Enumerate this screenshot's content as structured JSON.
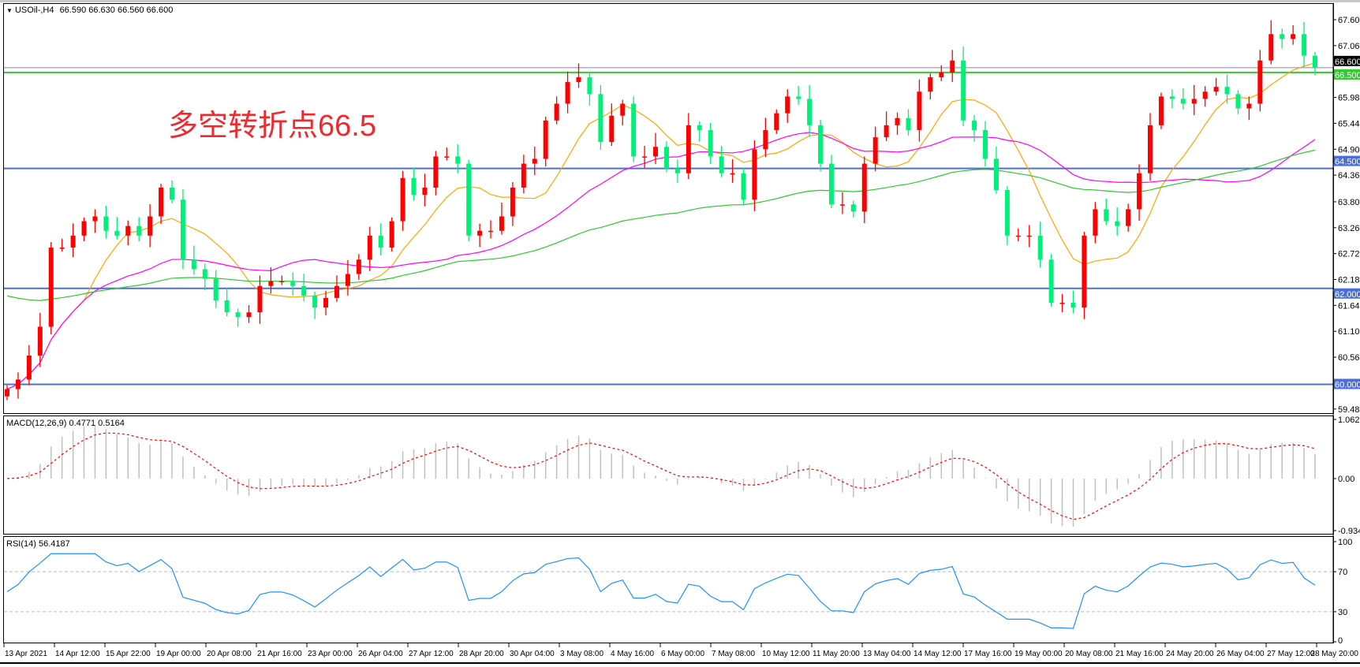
{
  "header": {
    "symbol": "USOil-,H4",
    "ohlc": "66.590 66.630 66.560 66.600",
    "menu_icon": "triangle-down-icon"
  },
  "annotation": "多空转折点66.5",
  "macd": {
    "label": "MACD(12,26,9) 0.4771 0.5164",
    "axis": [
      "1.0629",
      "0.00",
      "-0.9347"
    ]
  },
  "rsi": {
    "label": "RSI(14) 56.4187",
    "axis": [
      "100",
      "70",
      "30",
      "0"
    ]
  },
  "colors": {
    "bull": "#ff0000",
    "bear": "#00f07a",
    "level_blue": "#4a6fdc",
    "level_green": "#2ecc2e",
    "ma_fast": "#ffa500",
    "ma_mid": "#ff00ff",
    "ma_slow": "#2fc72f",
    "rsi": "#1e90ff",
    "signal": "#ff0000",
    "hist": "#c0c0c0"
  },
  "chart_data": {
    "type": "candlestick",
    "x_range": [
      "13 Apr 2021",
      "28 May 20:00"
    ],
    "ylim": [
      59.485,
      67.6
    ],
    "y_ticks": [
      "67.600",
      "67.060",
      "65.980",
      "65.440",
      "64.900",
      "64.360",
      "63.805",
      "63.265",
      "62.725",
      "62.185",
      "61.645",
      "61.105",
      "60.565",
      "59.485"
    ],
    "levels": [
      {
        "value": 66.6,
        "label": "66.600",
        "kind": "current"
      },
      {
        "value": 66.5,
        "label": "66.500",
        "kind": "green"
      },
      {
        "value": 64.5,
        "label": "64.500",
        "kind": "blue"
      },
      {
        "value": 62.0,
        "label": "62.000",
        "kind": "blue"
      },
      {
        "value": 60.0,
        "label": "60.000",
        "kind": "blue"
      }
    ],
    "x_labels": [
      "13 Apr 2021",
      "14 Apr 12:00",
      "15 Apr 22:00",
      "19 Apr 00:00",
      "20 Apr 08:00",
      "21 Apr 16:00",
      "23 Apr 00:00",
      "26 Apr 04:00",
      "27 Apr 12:00",
      "28 Apr 20:00",
      "30 Apr 04:00",
      "3 May 08:00",
      "4 May 16:00",
      "6 May 00:00",
      "7 May 08:00",
      "10 May 12:00",
      "11 May 20:00",
      "13 May 04:00",
      "14 May 12:00",
      "17 May 16:00",
      "19 May 00:00",
      "20 May 08:00",
      "21 May 16:00",
      "24 May 20:00",
      "26 May 04:00",
      "27 May 12:00",
      "28 May 20:00"
    ],
    "closes": [
      59.9,
      60.1,
      60.6,
      61.2,
      62.85,
      62.85,
      63.1,
      63.4,
      63.5,
      63.2,
      63.1,
      63.3,
      63.1,
      63.5,
      64.1,
      63.85,
      62.6,
      62.4,
      62.2,
      61.75,
      61.5,
      61.4,
      61.5,
      62.05,
      62.15,
      62.15,
      62.05,
      61.85,
      61.6,
      61.8,
      62.05,
      62.3,
      62.6,
      63.1,
      62.85,
      63.4,
      64.3,
      63.95,
      64.1,
      64.75,
      64.75,
      64.6,
      63.1,
      63.2,
      63.2,
      63.5,
      64.1,
      64.6,
      64.7,
      65.5,
      65.85,
      66.3,
      66.4,
      66.05,
      65.05,
      65.6,
      65.85,
      64.75,
      64.75,
      64.95,
      64.5,
      64.4,
      65.4,
      65.3,
      64.75,
      64.4,
      64.4,
      63.85,
      64.9,
      65.3,
      65.65,
      66.0,
      65.95,
      65.4,
      64.6,
      63.75,
      63.75,
      63.6,
      64.6,
      65.15,
      65.4,
      65.55,
      65.3,
      66.1,
      66.4,
      66.5,
      66.75,
      65.5,
      65.3,
      64.7,
      64.05,
      63.1,
      63.1,
      63.1,
      62.6,
      61.7,
      61.7,
      61.6,
      63.1,
      63.65,
      63.4,
      63.3,
      63.65,
      64.4,
      65.4,
      66.0,
      65.95,
      65.85,
      65.95,
      66.1,
      66.2,
      66.05,
      65.75,
      65.85,
      66.75,
      67.3,
      67.2,
      67.3,
      66.85,
      66.6
    ]
  }
}
